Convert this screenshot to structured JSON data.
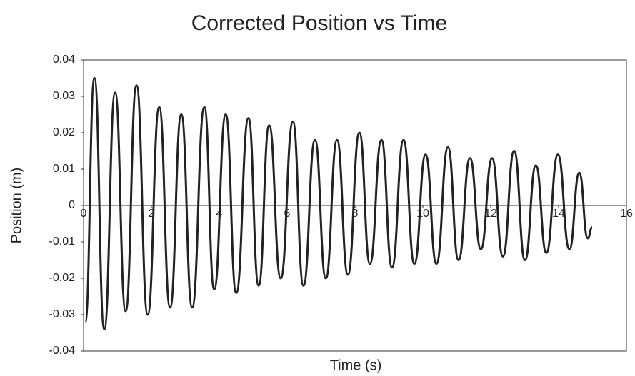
{
  "chart_data": {
    "type": "line",
    "title": "Corrected Position vs Time",
    "x_label": "Time (s)",
    "y_label": "Position (m)",
    "xlim": [
      0,
      16
    ],
    "xticks": [
      0,
      2,
      4,
      6,
      8,
      10,
      12,
      14,
      16
    ],
    "ylim": [
      -0.04,
      0.04
    ],
    "yticks": [
      -0.04,
      -0.03,
      -0.02,
      -0.01,
      0,
      0.01,
      0.02,
      0.03,
      0.04
    ],
    "grid": false,
    "series": [
      {
        "name": "Position",
        "color": "#222222",
        "x": [
          0.05,
          0.32,
          0.61,
          0.93,
          1.24,
          1.56,
          1.89,
          2.23,
          2.55,
          2.88,
          3.2,
          3.56,
          3.85,
          4.19,
          4.5,
          4.86,
          5.16,
          5.47,
          5.81,
          6.17,
          6.48,
          6.82,
          7.14,
          7.47,
          7.79,
          8.13,
          8.44,
          8.78,
          9.09,
          9.43,
          9.75,
          10.08,
          10.4,
          10.74,
          11.05,
          11.39,
          11.71,
          12.04,
          12.36,
          12.69,
          13.01,
          13.33,
          13.64,
          13.98,
          14.32,
          14.61,
          14.86,
          14.99
        ],
        "values": [
          -0.032,
          0.035,
          -0.034,
          0.031,
          -0.029,
          0.033,
          -0.03,
          0.027,
          -0.028,
          0.025,
          -0.028,
          0.027,
          -0.023,
          0.025,
          -0.024,
          0.024,
          -0.022,
          0.022,
          -0.02,
          0.023,
          -0.022,
          0.018,
          -0.02,
          0.018,
          -0.019,
          0.02,
          -0.016,
          0.018,
          -0.017,
          0.018,
          -0.016,
          0.014,
          -0.016,
          0.016,
          -0.015,
          0.013,
          -0.012,
          0.013,
          -0.014,
          0.015,
          -0.015,
          0.011,
          -0.013,
          0.014,
          -0.012,
          0.009,
          -0.009,
          -0.006
        ]
      }
    ]
  }
}
